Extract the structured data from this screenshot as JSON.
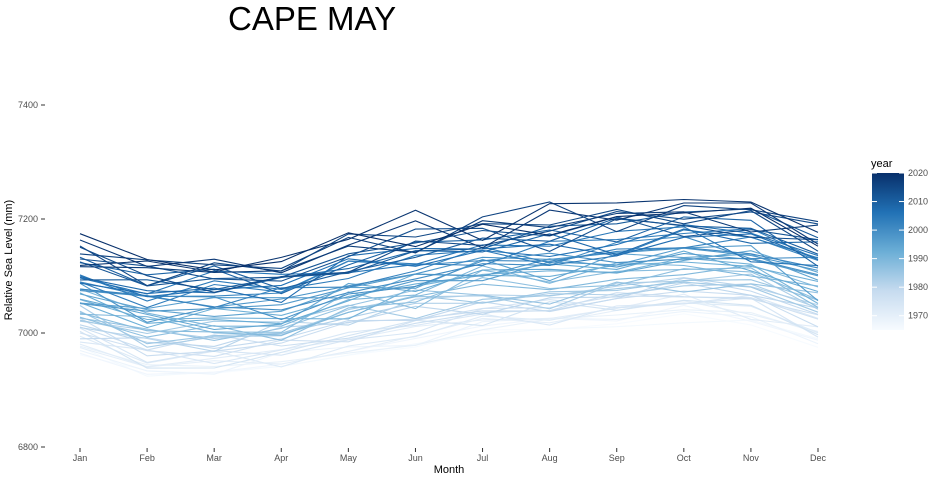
{
  "chart_data": {
    "type": "line",
    "title": "CAPE MAY",
    "xlabel": "Month",
    "ylabel": "Relative Sea Level (mm)",
    "categories": [
      "Jan",
      "Feb",
      "Mar",
      "Apr",
      "May",
      "Jun",
      "Jul",
      "Aug",
      "Sep",
      "Oct",
      "Nov",
      "Dec"
    ],
    "ylim": [
      6800,
      7480
    ],
    "yticks": [
      6800,
      7000,
      7200,
      7400
    ],
    "grid": false,
    "legend": {
      "title": "year",
      "position": "right",
      "range": [
        1965,
        2020
      ],
      "ticks": [
        1970,
        1980,
        1990,
        2000,
        2010,
        2020
      ],
      "color_low": "#f7fbff",
      "color_high": "#08306b"
    },
    "series_count": 56,
    "series_note": "one line per year from 1965 to 2020; individual year labels are not printed"
  }
}
